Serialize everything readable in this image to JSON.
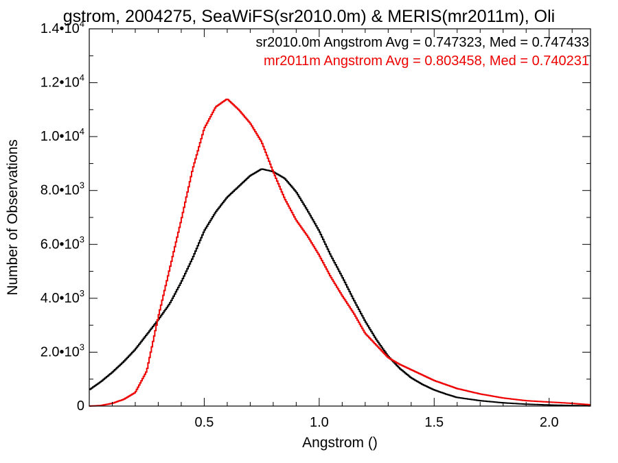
{
  "chart_data": {
    "type": "line",
    "title": "gstrom, 2004275, SeaWiFS(sr2010.0m) & MERIS(mr2011m), Oli",
    "xlabel": "Angstrom ()",
    "ylabel": "Number of Observations",
    "xlim": [
      0.0,
      2.18
    ],
    "ylim": [
      0,
      14000
    ],
    "x_ticks": [
      0.5,
      1.0,
      1.5,
      2.0
    ],
    "x_tick_labels": [
      "0.5",
      "1.0",
      "1.5",
      "2.0"
    ],
    "y_ticks": [
      0,
      2000,
      4000,
      6000,
      8000,
      10000,
      12000,
      14000
    ],
    "y_tick_labels": [
      {
        "mant": "0",
        "exp": ""
      },
      {
        "mant": "2.0•10",
        "exp": "3"
      },
      {
        "mant": "4.0•10",
        "exp": "3"
      },
      {
        "mant": "6.0•10",
        "exp": "3"
      },
      {
        "mant": "8.0•10",
        "exp": "3"
      },
      {
        "mant": "1.0•10",
        "exp": "4"
      },
      {
        "mant": "1.2•10",
        "exp": "4"
      },
      {
        "mant": "1.4•10",
        "exp": "4"
      }
    ],
    "grid": false,
    "legend_position": "top-right",
    "annotations": [
      {
        "text": "sr2010.0m Angstrom Avg = 0.747323, Med = 0.747433",
        "color": "#000000"
      },
      {
        "text": "mr2011m Angstrom Avg = 0.803458, Med = 0.740231",
        "color": "#ee0000"
      }
    ],
    "series": [
      {
        "color": "#000000",
        "step": true,
        "x": [
          0.0,
          0.05,
          0.1,
          0.15,
          0.2,
          0.25,
          0.3,
          0.35,
          0.4,
          0.45,
          0.5,
          0.55,
          0.6,
          0.65,
          0.7,
          0.75,
          0.8,
          0.85,
          0.9,
          0.95,
          1.0,
          1.05,
          1.1,
          1.15,
          1.2,
          1.25,
          1.3,
          1.35,
          1.4,
          1.45,
          1.5,
          1.55,
          1.6,
          1.7,
          1.8,
          1.9,
          2.0,
          2.1,
          2.18
        ],
        "y": [
          600,
          900,
          1250,
          1650,
          2100,
          2650,
          3200,
          3800,
          4600,
          5500,
          6500,
          7200,
          7750,
          8150,
          8550,
          8800,
          8700,
          8450,
          7950,
          7250,
          6500,
          5600,
          4800,
          3950,
          3150,
          2450,
          1850,
          1400,
          1050,
          800,
          600,
          450,
          320,
          200,
          120,
          70,
          40,
          20,
          10
        ]
      },
      {
        "color": "#ee0000",
        "step": true,
        "x": [
          0.0,
          0.05,
          0.1,
          0.15,
          0.2,
          0.25,
          0.3,
          0.35,
          0.4,
          0.45,
          0.5,
          0.55,
          0.6,
          0.65,
          0.7,
          0.75,
          0.8,
          0.85,
          0.9,
          0.95,
          1.0,
          1.05,
          1.1,
          1.15,
          1.2,
          1.25,
          1.3,
          1.35,
          1.4,
          1.45,
          1.5,
          1.55,
          1.6,
          1.7,
          1.8,
          1.9,
          2.0,
          2.1,
          2.18
        ],
        "y": [
          0,
          20,
          100,
          250,
          500,
          1300,
          3300,
          5100,
          6900,
          8800,
          10300,
          11100,
          11400,
          11000,
          10500,
          9800,
          8700,
          7700,
          6900,
          6300,
          5600,
          4800,
          4100,
          3450,
          2700,
          2250,
          1800,
          1550,
          1350,
          1150,
          950,
          800,
          650,
          450,
          300,
          200,
          150,
          100,
          50
        ]
      }
    ]
  }
}
